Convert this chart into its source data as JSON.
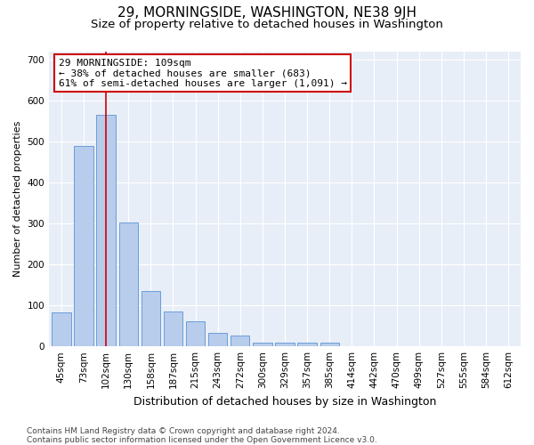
{
  "title": "29, MORNINGSIDE, WASHINGTON, NE38 9JH",
  "subtitle": "Size of property relative to detached houses in Washington",
  "xlabel": "Distribution of detached houses by size in Washington",
  "ylabel": "Number of detached properties",
  "categories": [
    "45sqm",
    "73sqm",
    "102sqm",
    "130sqm",
    "158sqm",
    "187sqm",
    "215sqm",
    "243sqm",
    "272sqm",
    "300sqm",
    "329sqm",
    "357sqm",
    "385sqm",
    "414sqm",
    "442sqm",
    "470sqm",
    "499sqm",
    "527sqm",
    "555sqm",
    "584sqm",
    "612sqm"
  ],
  "values": [
    82,
    488,
    565,
    302,
    135,
    84,
    62,
    33,
    26,
    10,
    10,
    9,
    10,
    0,
    0,
    0,
    0,
    0,
    0,
    0,
    0
  ],
  "bar_color": "#b8ccec",
  "bar_edge_color": "#6a9fd8",
  "background_color": "#e8eef7",
  "property_bar_index": 2,
  "vline_color": "#cc0000",
  "annotation_line1": "29 MORNINGSIDE: 109sqm",
  "annotation_line2": "← 38% of detached houses are smaller (683)",
  "annotation_line3": "61% of semi-detached houses are larger (1,091) →",
  "annotation_box_facecolor": "#ffffff",
  "annotation_box_edgecolor": "#cc0000",
  "ylim": [
    0,
    720
  ],
  "yticks": [
    0,
    100,
    200,
    300,
    400,
    500,
    600,
    700
  ],
  "footer": "Contains HM Land Registry data © Crown copyright and database right 2024.\nContains public sector information licensed under the Open Government Licence v3.0.",
  "title_fontsize": 11,
  "subtitle_fontsize": 9.5,
  "xlabel_fontsize": 9,
  "ylabel_fontsize": 8,
  "tick_fontsize": 7.5,
  "annotation_fontsize": 8,
  "footer_fontsize": 6.5
}
